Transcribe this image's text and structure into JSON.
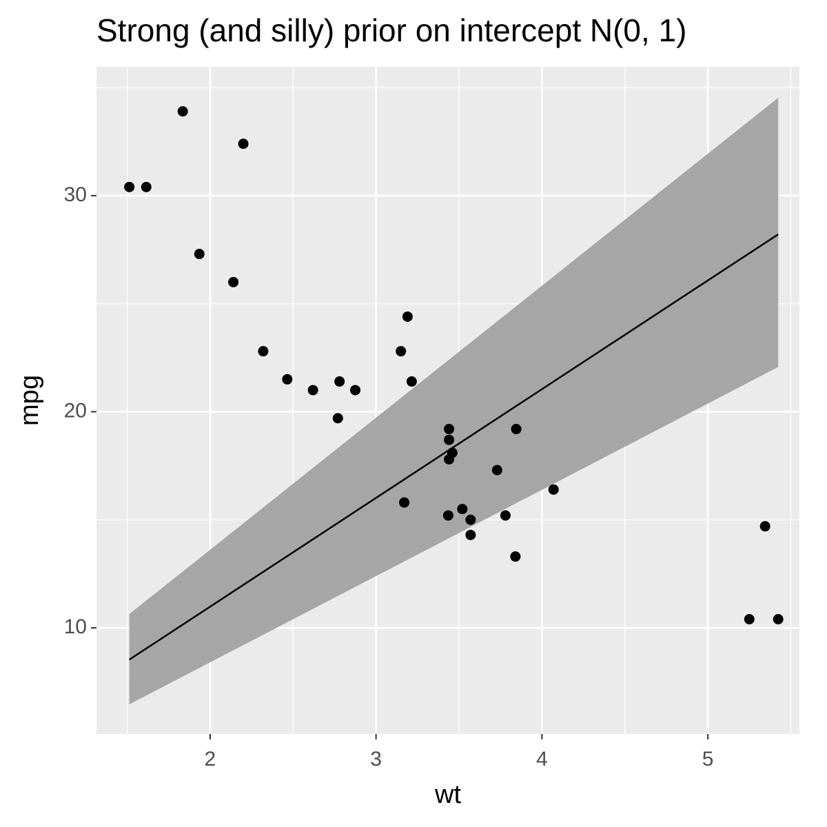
{
  "chart_data": {
    "type": "scatter",
    "title": "Strong (and silly) prior on intercept N(0, 1)",
    "x_label": "wt",
    "y_label": "mpg",
    "x": [
      2.62,
      2.875,
      2.32,
      3.215,
      3.44,
      3.46,
      3.57,
      3.19,
      3.15,
      3.44,
      3.44,
      4.07,
      3.73,
      3.78,
      5.25,
      5.424,
      5.345,
      2.2,
      1.615,
      1.835,
      2.465,
      3.52,
      3.435,
      3.84,
      3.845,
      1.935,
      2.14,
      1.513,
      3.17,
      2.77,
      3.57,
      2.78
    ],
    "y": [
      21.0,
      21.0,
      22.8,
      21.4,
      18.7,
      18.1,
      14.3,
      24.4,
      22.8,
      19.2,
      17.8,
      16.4,
      17.3,
      15.2,
      10.4,
      10.4,
      14.7,
      32.4,
      30.4,
      33.9,
      21.5,
      15.5,
      15.2,
      13.3,
      19.2,
      27.3,
      26.0,
      30.4,
      15.8,
      19.7,
      15.0,
      21.4
    ],
    "color": "#000000",
    "fit": {
      "x": [
        1.513,
        5.424
      ],
      "y": [
        8.53,
        28.21
      ],
      "lower": [
        6.46,
        22.07
      ],
      "upper": [
        10.64,
        34.53
      ],
      "color": "#000000",
      "fill": "#a6a6a6"
    },
    "xlim": [
      1.315,
      5.552
    ],
    "ylim": [
      5.09,
      35.96
    ],
    "xticks": [
      2,
      3,
      4,
      5
    ],
    "yticks": [
      10,
      20,
      30
    ],
    "x_minor_ticks": [
      1.5,
      2.5,
      3.5,
      4.5,
      5.5
    ],
    "y_minor_ticks": [
      15,
      25,
      35
    ],
    "grid": true
  }
}
